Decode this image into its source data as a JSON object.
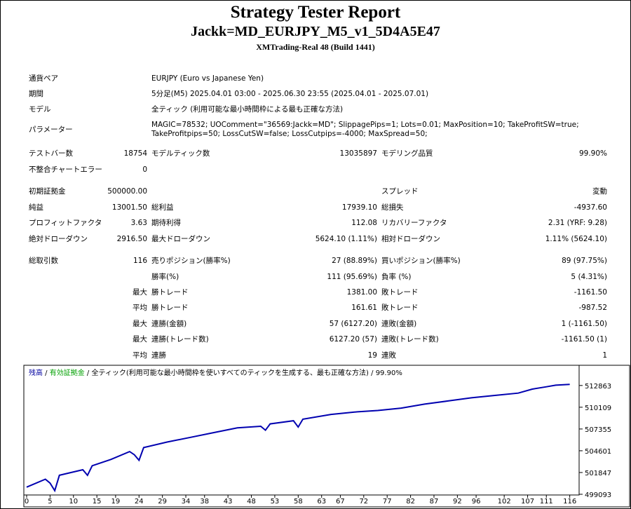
{
  "header": {
    "title": "Strategy Tester Report",
    "ea_name": "Jackk=MD_EURJPY_M5_v1_5D4A5E47",
    "server": "XMTrading-Real 48 (Build 1441)"
  },
  "settings": {
    "symbol_label": "通貨ペア",
    "symbol": "EURJPY (Euro vs Japanese Yen)",
    "period_label": "期間",
    "period": "5分足(M5) 2025.04.01 03:00 - 2025.06.30 23:55 (2025.04.01 - 2025.07.01)",
    "model_label": "モデル",
    "model": "全ティック (利用可能な最小時間枠による最も正確な方法)",
    "params_label": "パラメーター",
    "params_line1": "MAGIC=78532; UOComment=\"36569:Jackk=MD\"; SlippagePips=1; Lots=0.01; MaxPosition=10; TakeProfitSW=true;",
    "params_line2": "TakeProfitpips=50; LossCutSW=false; LossCutpips=-4000; MaxSpread=50;"
  },
  "stats": {
    "bars_label": "テストバー数",
    "bars": "18754",
    "ticks_label": "モデルティック数",
    "ticks": "13035897",
    "quality_label": "モデリング品質",
    "quality": "99.90%",
    "mismatch_label": "不整合チャートエラー",
    "mismatch": "0",
    "deposit_label": "初期証拠金",
    "deposit": "500000.00",
    "spread_label": "スプレッド",
    "spread": "変動",
    "net_label": "純益",
    "net": "13001.50",
    "gross_profit_label": "総利益",
    "gross_profit": "17939.10",
    "gross_loss_label": "総損失",
    "gross_loss": "-4937.60",
    "pf_label": "プロフィットファクタ",
    "pf": "3.63",
    "expected_label": "期待利得",
    "expected": "112.08",
    "recovery_label": "リカバリーファクタ",
    "recovery": "2.31 (YRF: 9.28)",
    "abs_dd_label": "絶対ドローダウン",
    "abs_dd": "2916.50",
    "max_dd_label": "最大ドローダウン",
    "max_dd": "5624.10 (1.11%)",
    "rel_dd_label": "相対ドローダウン",
    "rel_dd": "1.11% (5624.10)",
    "trades_label": "総取引数",
    "trades": "116",
    "short_label": "売りポジション(勝率%)",
    "short": "27 (88.89%)",
    "long_label": "買いポジション(勝率%)",
    "long": "89 (97.75%)",
    "win_rate_label": "勝率(%)",
    "win_rate": "111 (95.69%)",
    "loss_rate_label": "負率 (%)",
    "loss_rate": "5 (4.31%)",
    "max_word": "最大",
    "avg_word": "平均",
    "win_trade_label": "勝トレード",
    "loss_trade_label": "敗トレード",
    "largest_win": "1381.00",
    "largest_loss": "-1161.50",
    "avg_win": "161.61",
    "avg_loss": "-987.52",
    "consec_wins_money_label": "連勝(金額)",
    "consec_wins_money": "57 (6127.20)",
    "consec_losses_money_label": "連敗(金額)",
    "consec_losses_money": "1 (-1161.50)",
    "consec_wins_count_label": "連勝(トレード数)",
    "consec_wins_count": "6127.20 (57)",
    "consec_losses_count_label": "連敗(トレード数)",
    "consec_losses_count": "-1161.50 (1)",
    "consec_win_label": "連勝",
    "avg_consec_win": "19",
    "consec_loss_label": "連敗",
    "avg_consec_loss": "1"
  },
  "chart_legend": {
    "balance": "残高",
    "sep1": " / ",
    "equity": "有効証拠金",
    "rest": " / 全ティック(利用可能な最小時間枠を使いすべてのティックを生成する、最も正確な方法) / 99.90%"
  },
  "chart_data": {
    "type": "line",
    "ylim": [
      499093,
      514000
    ],
    "y_ticks": [
      "512863",
      "510109",
      "507355",
      "504601",
      "501847",
      "499093"
    ],
    "x_ticks": [
      "0",
      "5",
      "10",
      "15",
      "19",
      "24",
      "29",
      "34",
      "38",
      "43",
      "48",
      "53",
      "58",
      "63",
      "67",
      "72",
      "77",
      "82",
      "87",
      "92",
      "96",
      "102",
      "107",
      "111",
      "116"
    ],
    "series": [
      {
        "name": "残高",
        "color": "#0000b0",
        "points": [
          [
            0,
            500000
          ],
          [
            4,
            501000
          ],
          [
            5,
            500500
          ],
          [
            6,
            499550
          ],
          [
            7,
            501500
          ],
          [
            12,
            502200
          ],
          [
            13,
            501500
          ],
          [
            14,
            502700
          ],
          [
            18,
            503500
          ],
          [
            22,
            504500
          ],
          [
            23,
            504100
          ],
          [
            24,
            503400
          ],
          [
            25,
            505000
          ],
          [
            30,
            505700
          ],
          [
            35,
            506300
          ],
          [
            40,
            506900
          ],
          [
            45,
            507500
          ],
          [
            50,
            507700
          ],
          [
            51,
            507200
          ],
          [
            52,
            508000
          ],
          [
            57,
            508400
          ],
          [
            58,
            507600
          ],
          [
            59,
            508600
          ],
          [
            65,
            509200
          ],
          [
            70,
            509500
          ],
          [
            75,
            509700
          ],
          [
            80,
            510000
          ],
          [
            85,
            510500
          ],
          [
            90,
            510900
          ],
          [
            95,
            511300
          ],
          [
            100,
            511600
          ],
          [
            105,
            511900
          ],
          [
            108,
            512400
          ],
          [
            111,
            512700
          ],
          [
            113,
            512900
          ],
          [
            116,
            513000
          ]
        ]
      },
      {
        "name": "有効証拠金",
        "color": "#00b000",
        "points": [
          [
            0,
            500000
          ],
          [
            4,
            501000
          ],
          [
            5,
            500500
          ],
          [
            6,
            499550
          ],
          [
            7,
            501500
          ],
          [
            12,
            502200
          ],
          [
            13,
            501500
          ],
          [
            14,
            502700
          ],
          [
            18,
            503500
          ],
          [
            22,
            504500
          ],
          [
            23,
            504100
          ],
          [
            24,
            503400
          ],
          [
            25,
            505000
          ],
          [
            30,
            505700
          ],
          [
            35,
            506300
          ],
          [
            40,
            506900
          ],
          [
            45,
            507500
          ],
          [
            50,
            507700
          ],
          [
            51,
            507200
          ],
          [
            52,
            508000
          ],
          [
            57,
            508400
          ],
          [
            58,
            507600
          ],
          [
            59,
            508600
          ],
          [
            65,
            509200
          ],
          [
            70,
            509500
          ],
          [
            75,
            509700
          ],
          [
            80,
            510000
          ],
          [
            85,
            510500
          ],
          [
            90,
            510900
          ],
          [
            95,
            511300
          ],
          [
            100,
            511600
          ],
          [
            105,
            511900
          ],
          [
            108,
            512400
          ],
          [
            111,
            512700
          ],
          [
            113,
            512900
          ],
          [
            116,
            513000
          ]
        ]
      }
    ]
  }
}
